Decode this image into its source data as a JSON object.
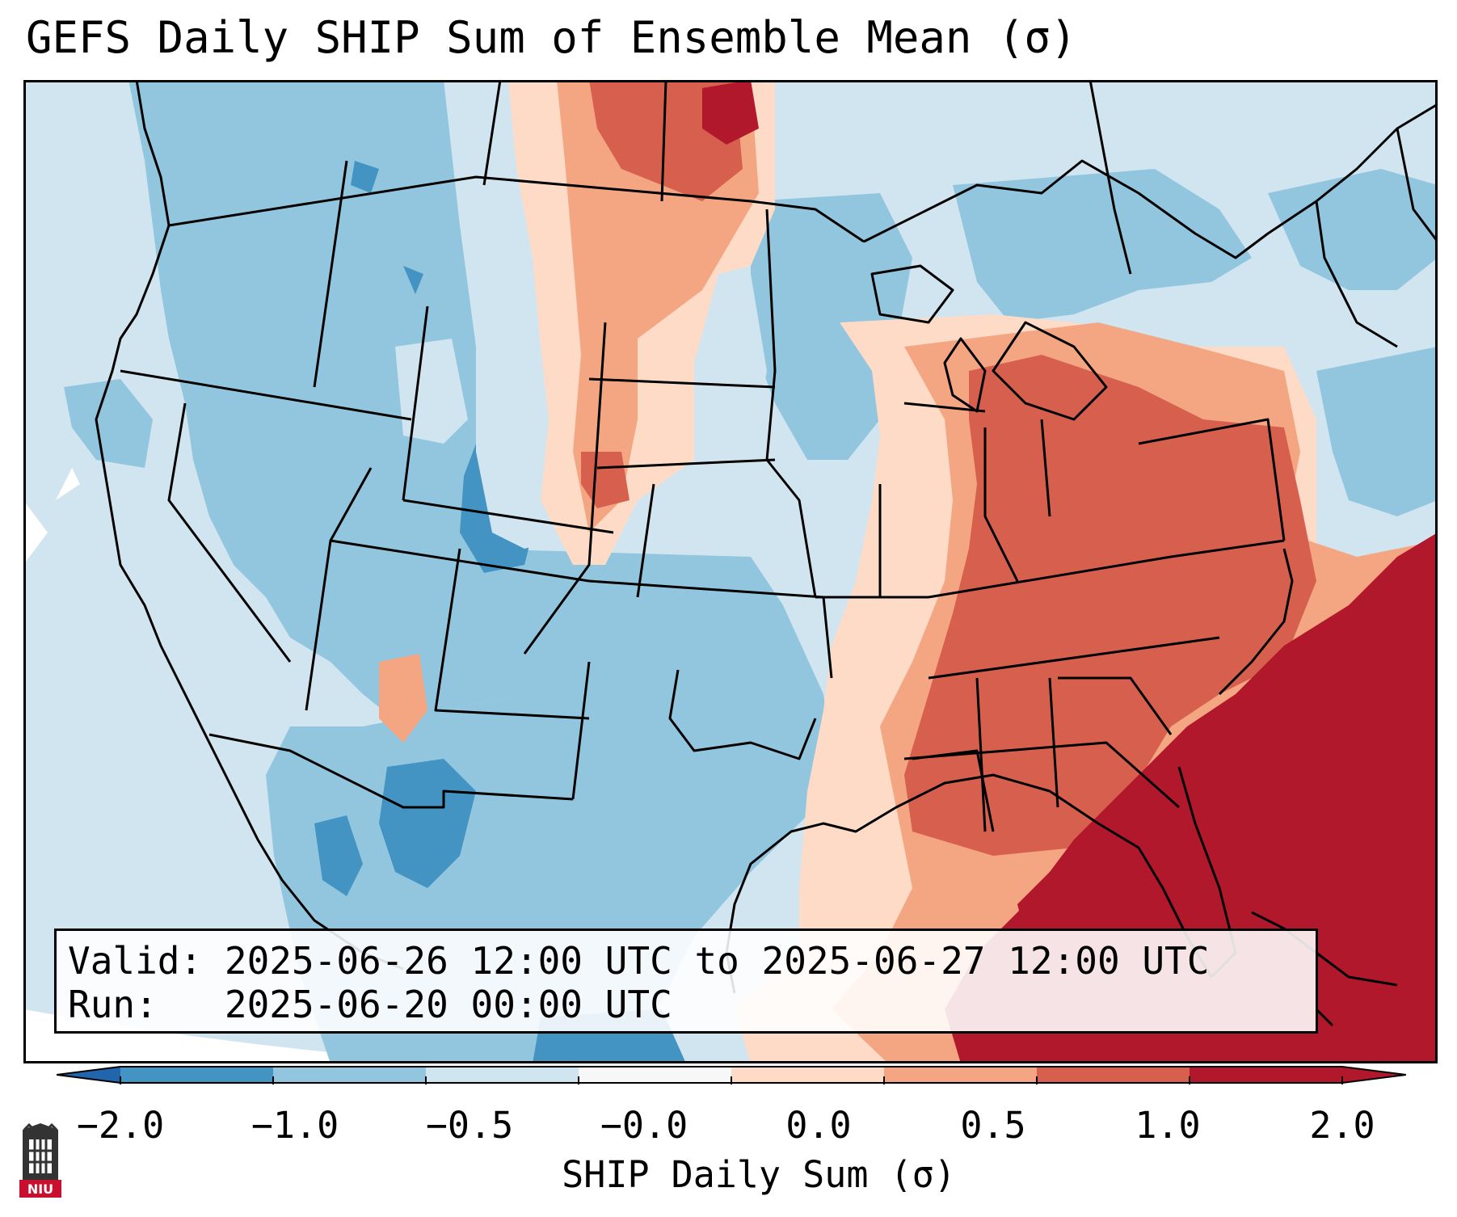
{
  "title": "GEFS Daily SHIP Sum of Ensemble Mean (σ)",
  "info": {
    "valid_label": "Valid:",
    "valid_value": "2025-06-26 12:00 UTC to 2025-06-27 12:00 UTC",
    "run_label": "Run:",
    "run_value": "2025-06-20 00:00 UTC"
  },
  "colorbar": {
    "label": "SHIP Daily Sum (σ)",
    "ticks": [
      "−2.0",
      "−1.0",
      "−0.5",
      "−0.0",
      "0.0",
      "0.5",
      "1.0",
      "2.0"
    ],
    "colors": [
      "#4393c3",
      "#92c5de",
      "#d1e5f0",
      "#f7f7f7",
      "#fddbc7",
      "#f4a582",
      "#d6604d",
      "#b2182b"
    ],
    "extend_low_color": "#2166ac",
    "extend_high_color": "#b2182b"
  },
  "map": {
    "region": "Continental United States",
    "background_color": "#d1e5f0",
    "border_color": "#000000"
  },
  "logo": {
    "text": "NIU"
  }
}
